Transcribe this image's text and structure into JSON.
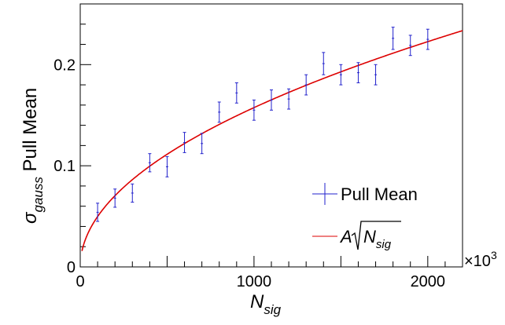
{
  "chart_data": {
    "type": "scatter",
    "x_multiplier_label": "×10",
    "x_multiplier_exp": "3",
    "xlabel_main": "N",
    "xlabel_sub": "sig",
    "ylabel_sigma": "σ",
    "ylabel_sub": "gauss",
    "ylabel_text": " Pull Mean",
    "xlim": [
      0,
      2200
    ],
    "ylim": [
      0,
      0.26
    ],
    "x_ticks": [
      {
        "value": 0,
        "label": "0"
      },
      {
        "value": 1000,
        "label": "1000"
      },
      {
        "value": 2000,
        "label": "2000"
      }
    ],
    "y_ticks": [
      {
        "value": 0,
        "label": "0"
      },
      {
        "value": 0.1,
        "label": "0.1"
      },
      {
        "value": 0.2,
        "label": "0.2"
      }
    ],
    "series": [
      {
        "name": "Pull Mean",
        "kind": "points_with_errors",
        "color": "#2222cc",
        "x": [
          100,
          200,
          300,
          400,
          500,
          600,
          700,
          800,
          900,
          1000,
          1100,
          1200,
          1300,
          1400,
          1500,
          1600,
          1700,
          1800,
          1900,
          2000
        ],
        "y": [
          0.054,
          0.068,
          0.073,
          0.103,
          0.099,
          0.123,
          0.122,
          0.153,
          0.172,
          0.155,
          0.165,
          0.166,
          0.18,
          0.201,
          0.19,
          0.192,
          0.19,
          0.226,
          0.219,
          0.225
        ],
        "yerr": [
          0.009,
          0.009,
          0.009,
          0.009,
          0.01,
          0.01,
          0.01,
          0.01,
          0.01,
          0.01,
          0.01,
          0.01,
          0.01,
          0.011,
          0.01,
          0.01,
          0.01,
          0.011,
          0.01,
          0.01
        ]
      },
      {
        "name_prefix": "A",
        "name_main": "N",
        "name_sub": "sig",
        "kind": "fit_curve",
        "color": "#dd0000",
        "A": 0.00498,
        "x_start": 10,
        "x_end": 2200
      }
    ],
    "legend_position": "bottom-right",
    "grid": false
  }
}
